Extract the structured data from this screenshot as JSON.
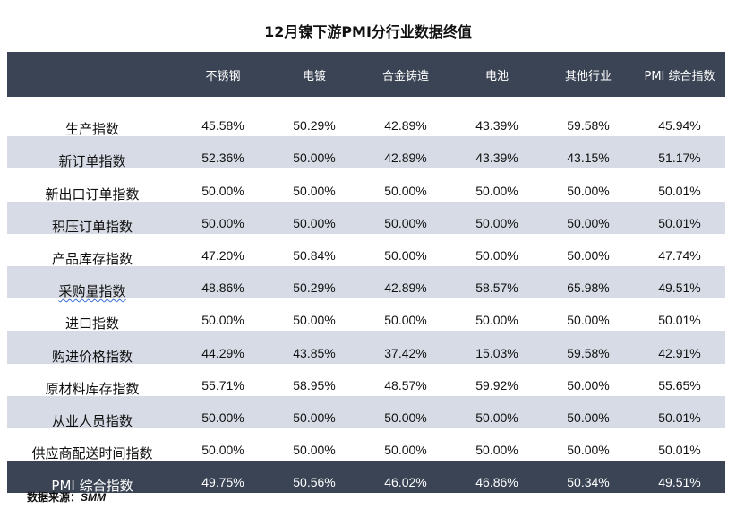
{
  "title": "12月镍下游PMI分行业数据终值",
  "columns": [
    "",
    "不锈钢",
    "电镀",
    "合金铸造",
    "电池",
    "其他行业",
    "PMI 综合指数"
  ],
  "rows": [
    {
      "label": "生产指数",
      "values": [
        "45.58%",
        "50.29%",
        "42.89%",
        "43.39%",
        "59.58%",
        "45.94%"
      ]
    },
    {
      "label": "新订单指数",
      "values": [
        "52.36%",
        "50.00%",
        "42.89%",
        "43.39%",
        "43.15%",
        "51.17%"
      ]
    },
    {
      "label": "新出口订单指数",
      "values": [
        "50.00%",
        "50.00%",
        "50.00%",
        "50.00%",
        "50.00%",
        "50.01%"
      ]
    },
    {
      "label": "积压订单指数",
      "values": [
        "50.00%",
        "50.00%",
        "50.00%",
        "50.00%",
        "50.00%",
        "50.01%"
      ]
    },
    {
      "label": "产品库存指数",
      "values": [
        "47.20%",
        "50.84%",
        "50.00%",
        "50.00%",
        "50.00%",
        "47.74%"
      ]
    },
    {
      "label": "采购量指数",
      "values": [
        "48.86%",
        "50.29%",
        "42.89%",
        "58.57%",
        "65.98%",
        "49.51%"
      ]
    },
    {
      "label": "进口指数",
      "values": [
        "50.00%",
        "50.00%",
        "50.00%",
        "50.00%",
        "50.00%",
        "50.01%"
      ]
    },
    {
      "label": "购进价格指数",
      "values": [
        "44.29%",
        "43.85%",
        "37.42%",
        "15.03%",
        "59.58%",
        "42.91%"
      ]
    },
    {
      "label": "原材料库存指数",
      "values": [
        "55.71%",
        "58.95%",
        "48.57%",
        "59.92%",
        "50.00%",
        "55.65%"
      ]
    },
    {
      "label": "从业人员指数",
      "values": [
        "50.00%",
        "50.00%",
        "50.00%",
        "50.00%",
        "50.00%",
        "50.01%"
      ]
    },
    {
      "label": "供应商配送时间指数",
      "values": [
        "50.00%",
        "50.00%",
        "50.00%",
        "50.00%",
        "50.00%",
        "50.01%"
      ]
    }
  ],
  "total": {
    "label": "PMI 综合指数",
    "values": [
      "49.75%",
      "50.56%",
      "46.02%",
      "46.86%",
      "50.34%",
      "49.51%"
    ]
  },
  "source": {
    "prefix": "数据来源：",
    "org": "SMM"
  },
  "colors": {
    "header_bg": "#3b4455",
    "alt_row_bg": "#d6dbe5",
    "header_text": "#ffffff"
  }
}
